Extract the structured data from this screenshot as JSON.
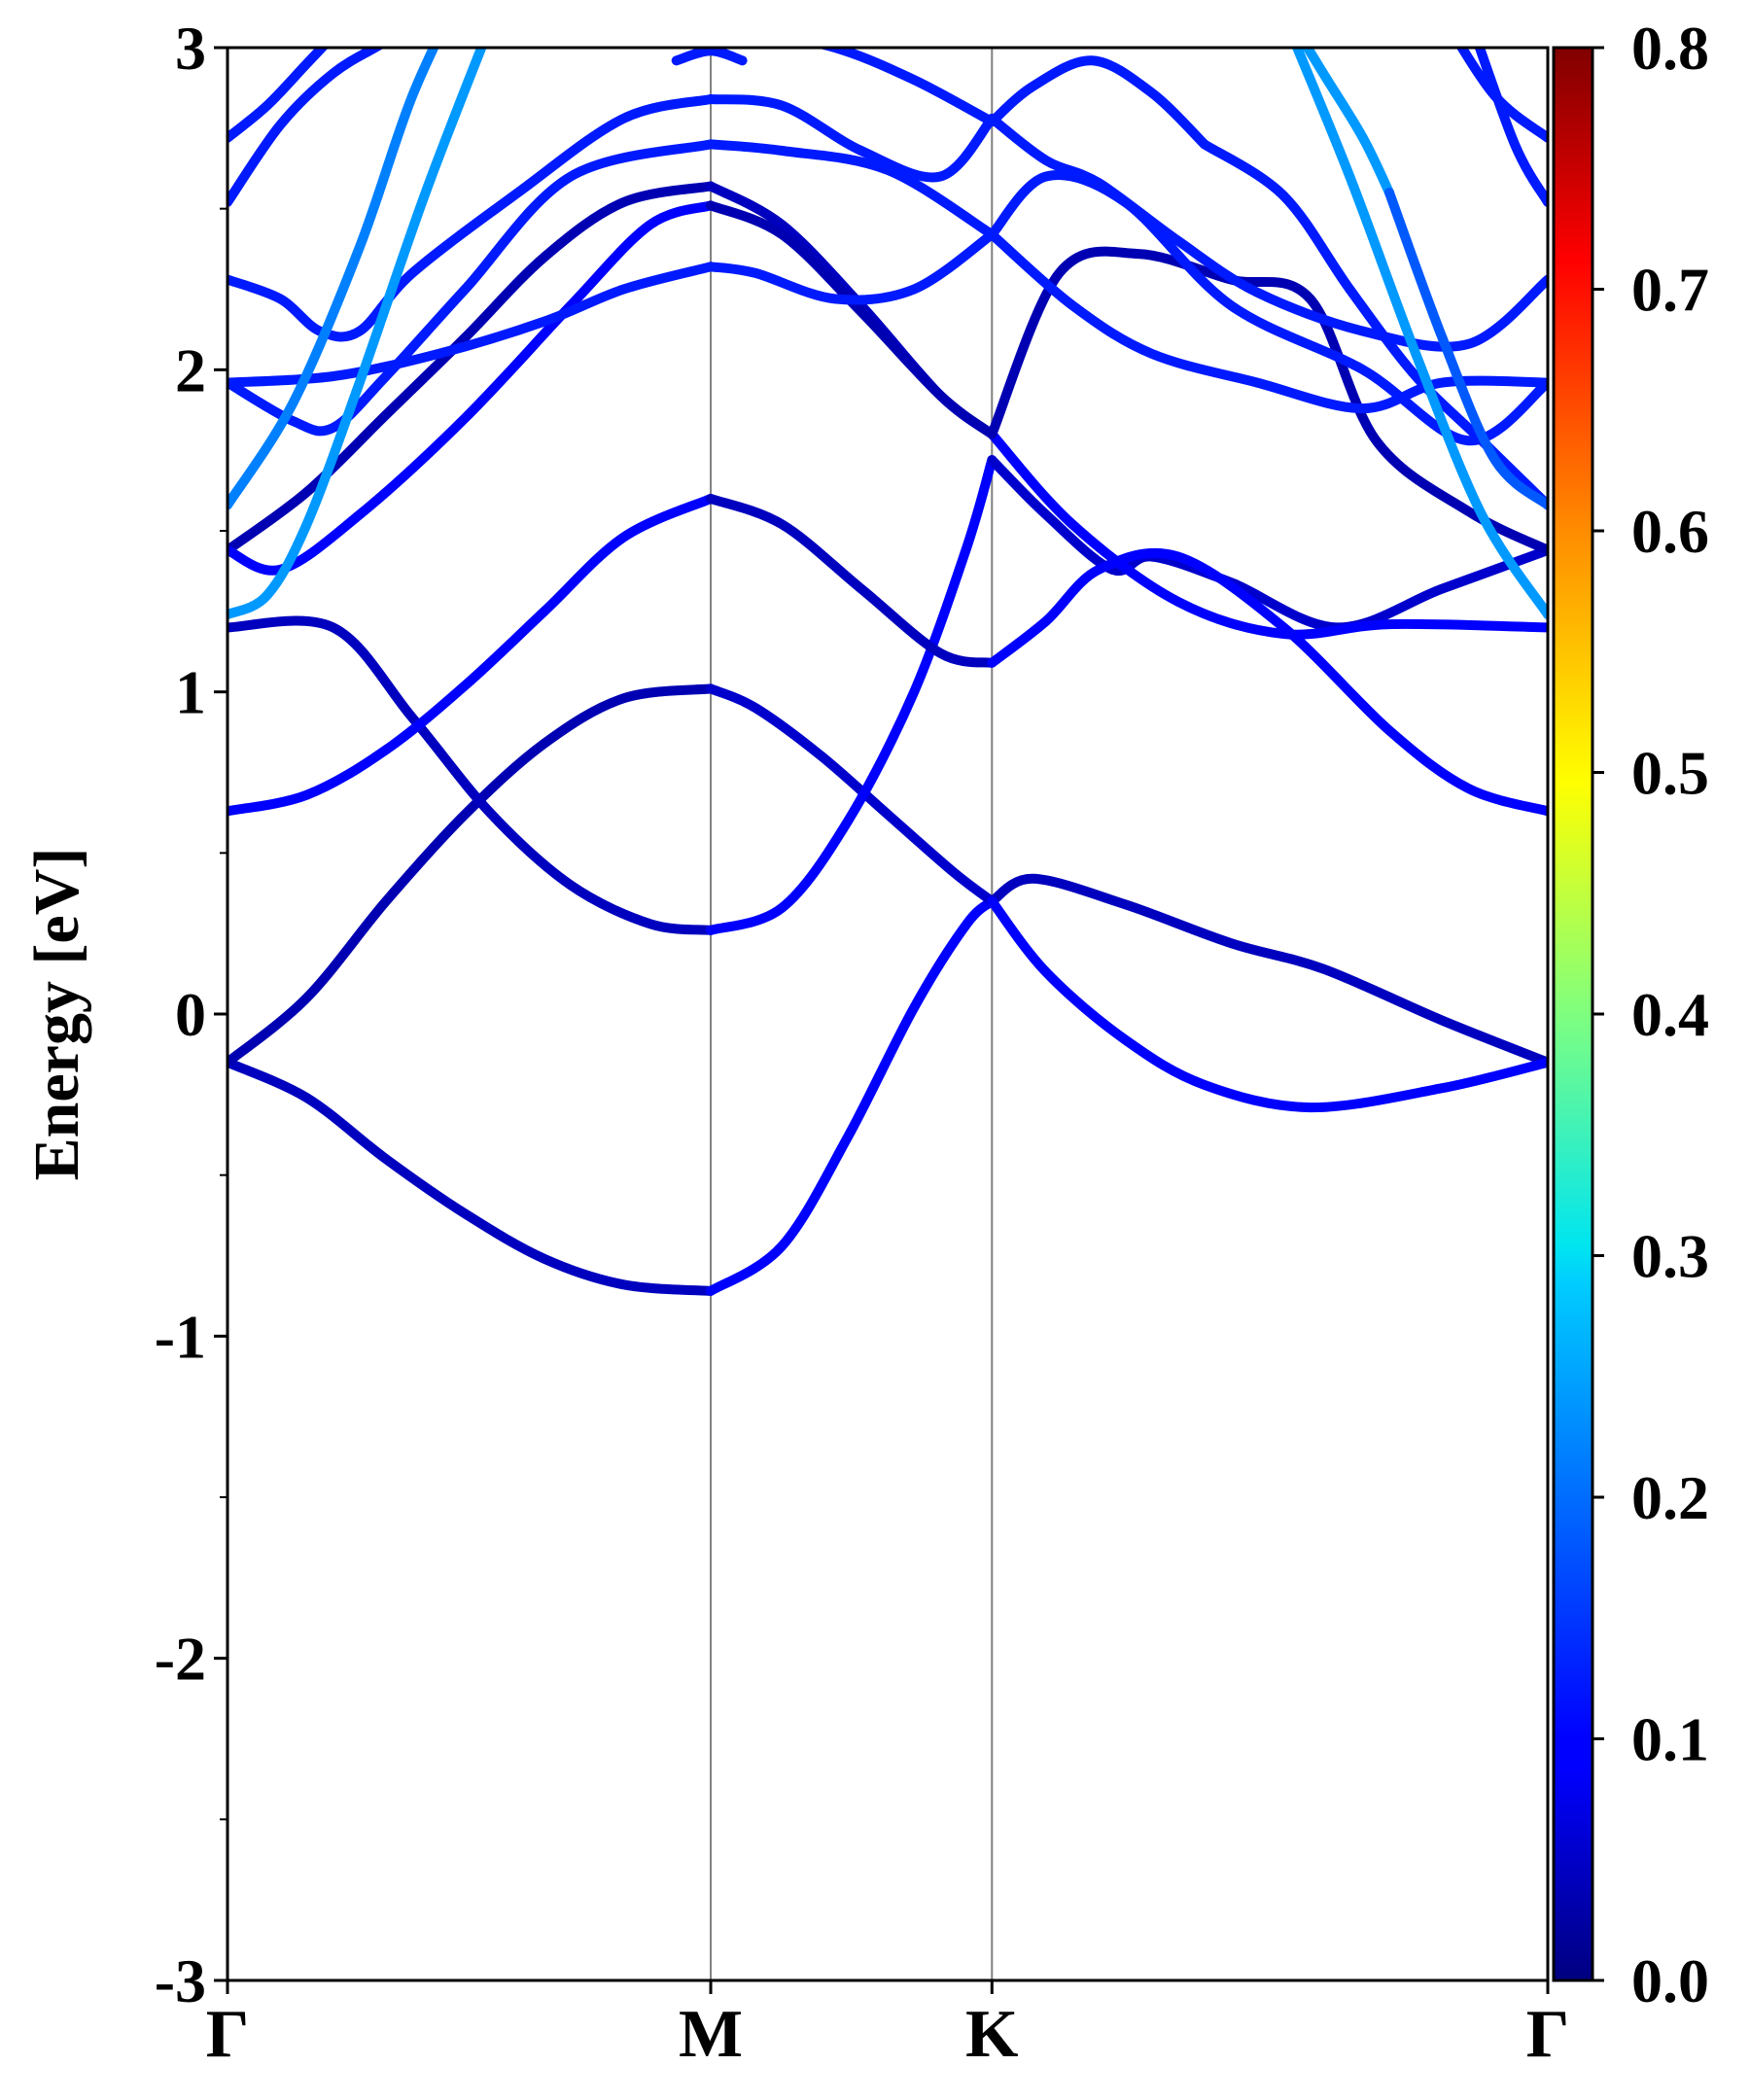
{
  "chart_data": {
    "type": "line",
    "title": "",
    "ylabel": "Energy [eV]",
    "xlabel": "",
    "ylim": [
      -3,
      3
    ],
    "yticks": [
      -3,
      -2,
      -1,
      0,
      1,
      2,
      3
    ],
    "ytick_labels": [
      "-3",
      "-2",
      "-1",
      "0",
      "1",
      "2",
      "3"
    ],
    "y_minor_step": 0.5,
    "kpath": [
      {
        "label": "Γ",
        "k": 0
      },
      {
        "label": "M",
        "k": 0.366
      },
      {
        "label": "K",
        "k": 0.579
      },
      {
        "label": "Γ",
        "k": 1.0
      }
    ],
    "xlim": [
      0,
      1.0
    ],
    "grid": false,
    "vertical_lines_at_kpoints": true,
    "colorbar": {
      "colormap": "jet",
      "range": [
        0.0,
        0.8
      ],
      "ticks": [
        0.0,
        0.1,
        0.2,
        0.3,
        0.4,
        0.5,
        0.6,
        0.7,
        0.8
      ],
      "tick_labels": [
        "0.0",
        "0.1",
        "0.2",
        "0.3",
        "0.4",
        "0.5",
        "0.6",
        "0.7",
        "0.8"
      ],
      "location": "right"
    },
    "series": [
      {
        "x": [
          0.0,
          0.06,
          0.12,
          0.18,
          0.24,
          0.3,
          0.366
        ],
        "values": [
          -0.15,
          -0.26,
          -0.45,
          -0.62,
          -0.76,
          -0.84,
          -0.86
        ],
        "weight": 0.05
      },
      {
        "x": [
          0.366,
          0.42,
          0.47,
          0.52,
          0.56,
          0.579
        ],
        "values": [
          -0.86,
          -0.72,
          -0.38,
          0.02,
          0.28,
          0.35
        ],
        "weight": 0.1
      },
      {
        "x": [
          0.579,
          0.61,
          0.68,
          0.76,
          0.83,
          0.92,
          1.0
        ],
        "values": [
          0.35,
          0.42,
          0.34,
          0.22,
          0.14,
          -0.02,
          -0.15
        ],
        "weight": 0.05
      },
      {
        "x": [
          0.0,
          0.06,
          0.12,
          0.18,
          0.24,
          0.3,
          0.366
        ],
        "values": [
          -0.15,
          0.05,
          0.35,
          0.62,
          0.84,
          0.98,
          1.01
        ],
        "weight": 0.04
      },
      {
        "x": [
          0.366,
          0.4,
          0.45,
          0.5,
          0.55,
          0.579
        ],
        "values": [
          1.01,
          0.95,
          0.8,
          0.62,
          0.44,
          0.35
        ],
        "weight": 0.06
      },
      {
        "x": [
          0.579,
          0.62,
          0.68,
          0.74,
          0.82,
          0.92,
          1.0
        ],
        "values": [
          0.35,
          0.13,
          -0.08,
          -0.22,
          -0.29,
          -0.23,
          -0.15
        ],
        "weight": 0.1
      },
      {
        "x": [
          0.0,
          0.08,
          0.14,
          0.2,
          0.26,
          0.32,
          0.366
        ],
        "values": [
          1.2,
          1.2,
          0.92,
          0.62,
          0.4,
          0.28,
          0.26
        ],
        "weight": 0.05
      },
      {
        "x": [
          0.366,
          0.42,
          0.47,
          0.52,
          0.56,
          0.579
        ],
        "values": [
          0.26,
          0.33,
          0.6,
          1.0,
          1.45,
          1.72
        ],
        "weight": 0.1
      },
      {
        "x": [
          0.579,
          0.62,
          0.67,
          0.7,
          0.76,
          0.84,
          0.92,
          1.0
        ],
        "values": [
          1.72,
          1.55,
          1.38,
          1.42,
          1.34,
          1.2,
          1.32,
          1.44
        ],
        "weight": 0.06
      },
      {
        "x": [
          0.0,
          0.06,
          0.12,
          0.18,
          0.24,
          0.3,
          0.366
        ],
        "values": [
          0.63,
          0.68,
          0.82,
          1.02,
          1.25,
          1.48,
          1.6
        ],
        "weight": 0.1
      },
      {
        "x": [
          0.366,
          0.42,
          0.48,
          0.54,
          0.579
        ],
        "values": [
          1.6,
          1.52,
          1.32,
          1.12,
          1.09
        ],
        "weight": 0.05
      },
      {
        "x": [
          0.579,
          0.62,
          0.66,
          0.72,
          0.8,
          0.88,
          0.94,
          1.0
        ],
        "values": [
          1.09,
          1.22,
          1.38,
          1.42,
          1.2,
          0.88,
          0.7,
          0.63
        ],
        "weight": 0.1
      },
      {
        "x": [
          0.0,
          0.06,
          0.12,
          0.18,
          0.24,
          0.3,
          0.366
        ],
        "values": [
          1.44,
          1.62,
          1.86,
          2.1,
          2.35,
          2.52,
          2.57
        ],
        "weight": 0.04
      },
      {
        "x": [
          0.366,
          0.42,
          0.48,
          0.54,
          0.579
        ],
        "values": [
          2.57,
          2.45,
          2.2,
          1.92,
          1.8
        ],
        "weight": 0.05
      },
      {
        "x": [
          0.579,
          0.64,
          0.72,
          0.8,
          0.88,
          1.0
        ],
        "values": [
          1.8,
          1.52,
          1.28,
          1.18,
          1.21,
          1.2
        ],
        "weight": 0.1
      },
      {
        "x": [
          0.0,
          0.04,
          0.1,
          0.18,
          0.26,
          0.32,
          0.366
        ],
        "values": [
          1.44,
          1.38,
          1.55,
          1.85,
          2.2,
          2.45,
          2.51
        ],
        "weight": 0.1
      },
      {
        "x": [
          0.366,
          0.42,
          0.48,
          0.54,
          0.579
        ],
        "values": [
          2.51,
          2.42,
          2.18,
          1.92,
          1.8
        ],
        "weight": 0.04
      },
      {
        "x": [
          0.579,
          0.63,
          0.69,
          0.76,
          0.82,
          0.87,
          0.94,
          1.0
        ],
        "values": [
          1.8,
          2.3,
          2.36,
          2.28,
          2.22,
          1.78,
          1.56,
          1.44
        ],
        "weight": 0.04
      },
      {
        "x": [
          0.0,
          0.08,
          0.16,
          0.24,
          0.3,
          0.366
        ],
        "values": [
          1.96,
          1.98,
          2.05,
          2.15,
          2.25,
          2.32
        ],
        "weight": 0.12
      },
      {
        "x": [
          0.366,
          0.4,
          0.46,
          0.52,
          0.579
        ],
        "values": [
          2.32,
          2.3,
          2.22,
          2.25,
          2.42
        ],
        "weight": 0.12
      },
      {
        "x": [
          0.579,
          0.64,
          0.7,
          0.78,
          0.86,
          0.92,
          1.0
        ],
        "values": [
          2.42,
          2.2,
          2.05,
          1.96,
          1.88,
          1.96,
          1.96
        ],
        "weight": 0.12
      },
      {
        "x": [
          0.0,
          0.04,
          0.07,
          0.1,
          0.14,
          0.22,
          0.3,
          0.366
        ],
        "values": [
          2.28,
          2.22,
          2.12,
          2.12,
          2.3,
          2.55,
          2.78,
          2.84
        ],
        "weight": 0.12
      },
      {
        "x": [
          0.366,
          0.42,
          0.48,
          0.54,
          0.579
        ],
        "values": [
          2.84,
          2.82,
          2.68,
          2.6,
          2.78
        ],
        "weight": 0.12
      },
      {
        "x": [
          0.579,
          0.62,
          0.66,
          0.72,
          0.78,
          0.86,
          0.94,
          1.0
        ],
        "values": [
          2.78,
          2.65,
          2.58,
          2.4,
          2.24,
          2.12,
          2.08,
          2.28
        ],
        "weight": 0.12
      },
      {
        "x": [
          0.0,
          0.05,
          0.08,
          0.12,
          0.18,
          0.26,
          0.366
        ],
        "values": [
          1.96,
          1.84,
          1.82,
          1.98,
          2.25,
          2.6,
          2.7
        ],
        "weight": 0.12
      },
      {
        "x": [
          0.366,
          0.42,
          0.5,
          0.579
        ],
        "values": [
          2.7,
          2.68,
          2.62,
          2.42
        ],
        "weight": 0.12
      },
      {
        "x": [
          0.579,
          0.62,
          0.68,
          0.76,
          0.86,
          0.94,
          1.0
        ],
        "values": [
          2.42,
          2.6,
          2.52,
          2.2,
          2.0,
          1.78,
          1.96
        ],
        "weight": 0.12
      },
      {
        "x": [
          0.0,
          0.04,
          0.08,
          0.12,
          0.17,
          0.22
        ],
        "values": [
          2.52,
          2.76,
          2.92,
          3.02,
          3.15,
          3.3
        ],
        "weight": 0.12
      },
      {
        "x": [
          0.0,
          0.03,
          0.06,
          0.09
        ],
        "values": [
          2.72,
          2.82,
          2.95,
          3.08
        ],
        "weight": 0.12
      },
      {
        "x": [
          0.34,
          0.366,
          0.39
        ],
        "values": [
          2.96,
          2.99,
          2.96
        ],
        "weight": 0.12
      },
      {
        "x": [
          0.39,
          0.46,
          0.52,
          0.579
        ],
        "values": [
          3.06,
          3.0,
          2.9,
          2.77
        ],
        "weight": 0.12
      },
      {
        "x": [
          0.579,
          0.61,
          0.655,
          0.7,
          0.74
        ],
        "values": [
          2.77,
          2.88,
          2.96,
          2.86,
          2.7
        ],
        "weight": 0.12
      },
      {
        "x": [
          0.74,
          0.8,
          0.85,
          0.9,
          0.95,
          1.0
        ],
        "values": [
          2.7,
          2.54,
          2.25,
          1.98,
          1.78,
          1.58
        ],
        "weight": 0.12
      },
      {
        "x": [
          0.92,
          0.96,
          1.0
        ],
        "values": [
          3.1,
          2.85,
          2.72
        ],
        "weight": 0.12
      },
      {
        "x": [
          0.94,
          0.975,
          1.0
        ],
        "values": [
          3.1,
          2.7,
          2.52
        ],
        "weight": 0.12
      },
      {
        "x": [
          0.0,
          0.03,
          0.06,
          0.1,
          0.15,
          0.2
        ],
        "values": [
          1.24,
          1.3,
          1.52,
          1.96,
          2.55,
          3.08
        ],
        "weight": 0.22
      },
      {
        "x": [
          0.0,
          0.05,
          0.1,
          0.14,
          0.18
        ],
        "values": [
          1.58,
          1.9,
          2.38,
          2.85,
          3.2
        ],
        "weight": 0.2
      },
      {
        "x": [
          0.8,
          0.85,
          0.9,
          0.95,
          1.0
        ],
        "values": [
          3.1,
          2.6,
          2.05,
          1.55,
          1.24
        ],
        "weight": 0.22
      },
      {
        "x": [
          0.8,
          0.83,
          0.86,
          0.88
        ],
        "values": [
          3.12,
          2.92,
          2.72,
          2.55
        ],
        "weight": 0.22
      },
      {
        "x": [
          0.88,
          0.92,
          0.96,
          1.0
        ],
        "values": [
          2.55,
          2.1,
          1.72,
          1.58
        ],
        "weight": 0.17
      }
    ]
  }
}
